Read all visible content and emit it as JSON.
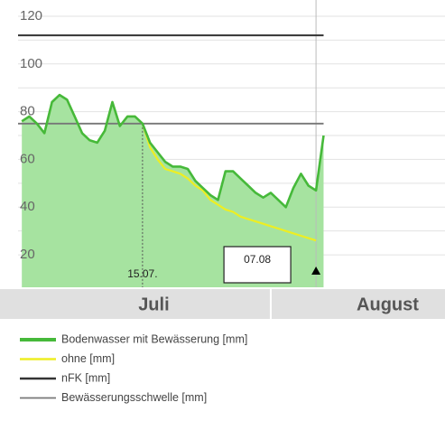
{
  "chart_data": {
    "type": "line",
    "xlim": [
      -1.5,
      55.1
    ],
    "ylim": [
      6.4,
      126.8
    ],
    "yticks": [
      20,
      40,
      60,
      80,
      100,
      120
    ],
    "minor_ygrid": [
      30,
      50,
      70,
      90,
      110
    ],
    "grid": true,
    "series": [
      {
        "name": "Bodenwasser mit Bewässerung [mm]",
        "color": "#46b93a",
        "fill": "#a6e3a0",
        "x": [
          -1,
          0,
          1,
          2,
          3,
          4,
          5,
          6,
          7,
          8,
          9,
          10,
          11,
          12,
          13,
          14,
          15,
          16,
          17,
          18,
          19,
          20,
          21,
          22,
          23,
          24,
          25,
          26,
          27,
          28,
          29,
          30,
          31,
          32,
          33,
          34,
          35,
          36,
          37,
          38,
          39
        ],
        "values": [
          76,
          78,
          75,
          71,
          84,
          87,
          85,
          78,
          71,
          68,
          67,
          72,
          84,
          74,
          78,
          78,
          75,
          67,
          63,
          59,
          57,
          57,
          56,
          51,
          48,
          45,
          43,
          55,
          55,
          52,
          49,
          46,
          44,
          46,
          43,
          40,
          48,
          54,
          49,
          47,
          70
        ]
      },
      {
        "name": "ohne [mm]",
        "color": "#eeee22",
        "x": [
          -1,
          0,
          1,
          2,
          3,
          4,
          5,
          6,
          7,
          8,
          9,
          10,
          11,
          12,
          13,
          14,
          15,
          16,
          17,
          18,
          19,
          20,
          21,
          22,
          23,
          24,
          25,
          26,
          27,
          28,
          29,
          30,
          31,
          32,
          33,
          34,
          35,
          36,
          37,
          38
        ],
        "values": [
          76,
          78,
          75,
          71,
          84,
          87,
          85,
          78,
          71,
          68,
          67,
          72,
          84,
          74,
          78,
          78,
          75,
          65,
          60,
          56,
          55,
          54,
          52,
          49,
          47,
          43,
          41,
          39,
          38,
          36,
          35,
          34,
          33,
          32,
          31,
          30,
          29,
          28,
          27,
          26
        ]
      },
      {
        "name": "nFK [mm]",
        "color": "#333333",
        "x": [
          -1.5,
          39
        ],
        "values": [
          112,
          112
        ]
      },
      {
        "name": "Bewässerungsschwelle [mm]",
        "color": "#777777",
        "x": [
          -1.5,
          39
        ],
        "values": [
          75,
          75
        ]
      }
    ],
    "months": [
      {
        "name": "Juli",
        "start": 1,
        "end": 32
      },
      {
        "name": "August",
        "start": 32,
        "end": 63
      }
    ],
    "annotations": [
      {
        "text": "15.07.",
        "x": 15
      },
      {
        "text": "07.08",
        "x": 38
      }
    ]
  }
}
